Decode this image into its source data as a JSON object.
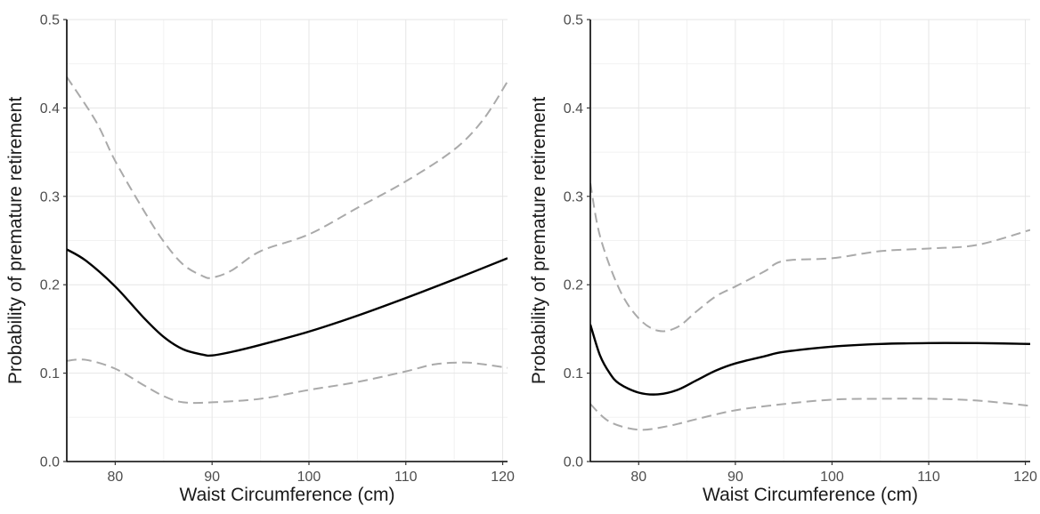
{
  "chart_data": [
    {
      "type": "line",
      "xlabel": "Waist Circumference (cm)",
      "ylabel": "Probability of premature retirement",
      "xlim": [
        75,
        120.5
      ],
      "ylim": [
        0,
        0.5
      ],
      "x_ticks": [
        80,
        90,
        100,
        110,
        120
      ],
      "y_ticks": [
        0.0,
        0.1,
        0.2,
        0.3,
        0.4,
        0.5
      ],
      "y_tick_labels": [
        "0.0",
        "0.1",
        "0.2",
        "0.3",
        "0.4",
        "0.5"
      ],
      "grid": true,
      "series": [
        {
          "role": "estimate",
          "style": "solid",
          "color": "#000000",
          "points": [
            [
              75,
              0.24
            ],
            [
              77,
              0.227
            ],
            [
              80,
              0.198
            ],
            [
              83,
              0.162
            ],
            [
              85,
              0.141
            ],
            [
              87,
              0.127
            ],
            [
              89,
              0.121
            ],
            [
              90,
              0.12
            ],
            [
              92,
              0.124
            ],
            [
              95,
              0.132
            ],
            [
              100,
              0.147
            ],
            [
              105,
              0.165
            ],
            [
              110,
              0.185
            ],
            [
              115,
              0.206
            ],
            [
              120.5,
              0.23
            ]
          ]
        },
        {
          "role": "upper bound",
          "style": "dashed",
          "color": "#aaaaaa",
          "points": [
            [
              75,
              0.435
            ],
            [
              78,
              0.385
            ],
            [
              80,
              0.34
            ],
            [
              83,
              0.283
            ],
            [
              85,
              0.249
            ],
            [
              87,
              0.223
            ],
            [
              89,
              0.21
            ],
            [
              90,
              0.208
            ],
            [
              92,
              0.216
            ],
            [
              95,
              0.238
            ],
            [
              100,
              0.257
            ],
            [
              105,
              0.287
            ],
            [
              110,
              0.317
            ],
            [
              115,
              0.353
            ],
            [
              118,
              0.387
            ],
            [
              120.5,
              0.43
            ]
          ]
        },
        {
          "role": "lower bound",
          "style": "dashed",
          "color": "#aaaaaa",
          "points": [
            [
              75,
              0.114
            ],
            [
              77,
              0.115
            ],
            [
              80,
              0.105
            ],
            [
              83,
              0.086
            ],
            [
              85,
              0.074
            ],
            [
              87,
              0.067
            ],
            [
              90,
              0.067
            ],
            [
              95,
              0.071
            ],
            [
              100,
              0.081
            ],
            [
              105,
              0.09
            ],
            [
              110,
              0.102
            ],
            [
              113,
              0.11
            ],
            [
              116,
              0.112
            ],
            [
              118,
              0.11
            ],
            [
              120.5,
              0.106
            ]
          ]
        }
      ]
    },
    {
      "type": "line",
      "xlabel": "Waist Circumference (cm)",
      "ylabel": "Probability of premature retirement",
      "xlim": [
        75,
        120.5
      ],
      "ylim": [
        0,
        0.5
      ],
      "x_ticks": [
        80,
        90,
        100,
        110,
        120
      ],
      "y_ticks": [
        0.0,
        0.1,
        0.2,
        0.3,
        0.4,
        0.5
      ],
      "y_tick_labels": [
        "0.0",
        "0.1",
        "0.2",
        "0.3",
        "0.4",
        "0.5"
      ],
      "grid": true,
      "series": [
        {
          "role": "estimate",
          "style": "solid",
          "color": "#000000",
          "points": [
            [
              75,
              0.155
            ],
            [
              76,
              0.12
            ],
            [
              77,
              0.1
            ],
            [
              78,
              0.088
            ],
            [
              80,
              0.078
            ],
            [
              82,
              0.076
            ],
            [
              84,
              0.081
            ],
            [
              86,
              0.092
            ],
            [
              88,
              0.103
            ],
            [
              90,
              0.111
            ],
            [
              93,
              0.119
            ],
            [
              95,
              0.124
            ],
            [
              100,
              0.13
            ],
            [
              105,
              0.133
            ],
            [
              110,
              0.134
            ],
            [
              115,
              0.134
            ],
            [
              120.5,
              0.133
            ]
          ]
        },
        {
          "role": "upper bound",
          "style": "dashed",
          "color": "#aaaaaa",
          "points": [
            [
              75,
              0.315
            ],
            [
              76,
              0.255
            ],
            [
              78,
              0.195
            ],
            [
              80,
              0.162
            ],
            [
              82,
              0.148
            ],
            [
              84,
              0.152
            ],
            [
              86,
              0.17
            ],
            [
              88,
              0.187
            ],
            [
              90,
              0.198
            ],
            [
              93,
              0.215
            ],
            [
              95,
              0.227
            ],
            [
              100,
              0.23
            ],
            [
              105,
              0.238
            ],
            [
              110,
              0.241
            ],
            [
              115,
              0.245
            ],
            [
              120.5,
              0.262
            ]
          ]
        },
        {
          "role": "lower bound",
          "style": "dashed",
          "color": "#aaaaaa",
          "points": [
            [
              75,
              0.065
            ],
            [
              77,
              0.045
            ],
            [
              80,
              0.036
            ],
            [
              83,
              0.04
            ],
            [
              86,
              0.048
            ],
            [
              90,
              0.058
            ],
            [
              95,
              0.065
            ],
            [
              100,
              0.07
            ],
            [
              105,
              0.071
            ],
            [
              110,
              0.071
            ],
            [
              115,
              0.069
            ],
            [
              120.5,
              0.063
            ]
          ]
        }
      ]
    }
  ]
}
